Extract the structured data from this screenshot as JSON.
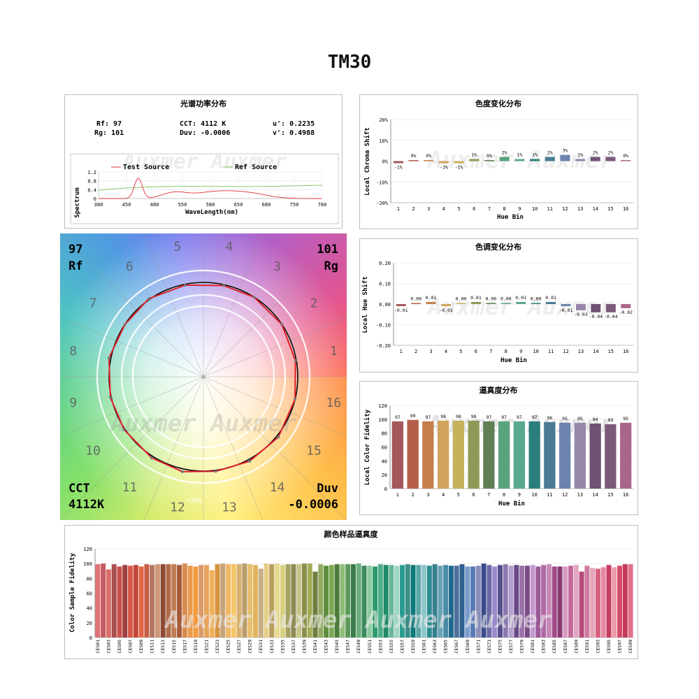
{
  "title": "TM30",
  "spd": {
    "title": "光谱功率分布",
    "stats": {
      "rf": "Rf: 97",
      "rg": "Rg: 101",
      "cct": "CCT: 4112 K",
      "duv": "Duv: -0.0006",
      "u": "u': 0.2235",
      "v": "v': 0.4988"
    },
    "legend": [
      "Test Source",
      "Ref Source"
    ],
    "ylabel": "Spectrum",
    "xlabel": "WaveLength(nm)",
    "xticks": [
      "380",
      "450",
      "480",
      "550",
      "580",
      "650",
      "680",
      "750",
      "780"
    ],
    "yticks": [
      "0",
      "0.4",
      "0.8",
      "1.2"
    ],
    "watermark": "Auxmer   Auxmer"
  },
  "vector": {
    "rf_value": "97",
    "rf_label": "Rf",
    "rg_value": "101",
    "rg_label": "Rg",
    "cct_label": "CCT",
    "cct_value": "4112K",
    "duv_label": "Duv",
    "duv_value": "-0.0006",
    "ring_labels": [
      "-20%",
      "+20%"
    ],
    "bins": [
      "1",
      "2",
      "3",
      "4",
      "5",
      "6",
      "7",
      "8",
      "9",
      "10",
      "11",
      "12",
      "13",
      "14",
      "15",
      "16"
    ],
    "watermark": "Auxmer  Auxmer"
  },
  "chroma": {
    "title": "色度变化分布",
    "ylabel": "Local Chroma Shift",
    "xlabel": "Hue Bin",
    "yticks": [
      "20%",
      "10%",
      "0%",
      "-10%",
      "-20%"
    ],
    "bins": [
      "1",
      "2",
      "3",
      "4",
      "5",
      "6",
      "7",
      "8",
      "9",
      "10",
      "11",
      "12",
      "13",
      "14",
      "15",
      "16"
    ],
    "labels": [
      "-1%",
      "0%",
      "0%",
      "-1%",
      "-1%",
      "1%",
      "0%",
      "2%",
      "1%",
      "1%",
      "2%",
      "3%",
      "1%",
      "2%",
      "2%",
      "0%"
    ],
    "values": [
      -1,
      0,
      0,
      -1,
      -1,
      1,
      0,
      2,
      1,
      1,
      2,
      3,
      1,
      2,
      2,
      0
    ],
    "ylim": [
      -20,
      20
    ],
    "watermark": "Auxmer  Auxmer"
  },
  "hue": {
    "title": "色调变化分布",
    "ylabel": "Local Hue Shift",
    "xlabel": "Hue Bin",
    "yticks": [
      "0.20",
      "0.10",
      "0.00",
      "-0.10",
      "-0.20"
    ],
    "bins": [
      "1",
      "2",
      "3",
      "4",
      "5",
      "6",
      "7",
      "8",
      "9",
      "10",
      "11",
      "12",
      "13",
      "14",
      "15",
      "16"
    ],
    "labels": [
      "-0.01",
      "0.00",
      "0.01",
      "-0.01",
      "0.00",
      "0.01",
      "0.00",
      "0.00",
      "0.01",
      "0.00",
      "0.01",
      "-0.01",
      "-0.03",
      "-0.04",
      "-0.04",
      "-0.02"
    ],
    "values": [
      -0.01,
      0,
      0.01,
      -0.01,
      0,
      0.01,
      0,
      0,
      0.01,
      0,
      0.01,
      -0.01,
      -0.03,
      -0.04,
      -0.04,
      -0.02
    ],
    "ylim": [
      -0.2,
      0.2
    ],
    "watermark": "Auxmer  Auxmer"
  },
  "fidelity": {
    "title": "逼真度分布",
    "ylabel": "Local Color Fidelity",
    "xlabel": "Hue Bin",
    "yticks": [
      "120",
      "100",
      "80",
      "60",
      "40",
      "20",
      "0"
    ],
    "bins": [
      "1",
      "2",
      "3",
      "4",
      "5",
      "6",
      "7",
      "8",
      "9",
      "10",
      "11",
      "12",
      "13",
      "14",
      "15",
      "16"
    ],
    "labels": [
      "97",
      "99",
      "97",
      "98",
      "98",
      "98",
      "97",
      "97",
      "97",
      "97",
      "96",
      "95",
      "95",
      "94",
      "93",
      "95"
    ],
    "values": [
      97,
      99,
      97,
      98,
      98,
      98,
      97,
      97,
      97,
      97,
      96,
      95,
      95,
      94,
      93,
      95
    ],
    "ylim": [
      0,
      120
    ],
    "watermark": "Auxmer  Auxmer"
  },
  "ces": {
    "title": "颜色样品逼真度",
    "ylabel": "Color Sample Fidelity",
    "yticks": [
      "120",
      "100",
      "80",
      "60",
      "40",
      "20",
      "0"
    ],
    "ylim": [
      0,
      120
    ],
    "values": [
      99,
      100,
      92,
      99,
      96,
      98,
      97,
      98,
      96,
      99,
      98,
      99,
      99,
      99,
      99,
      98,
      100,
      97,
      96,
      98,
      98,
      91,
      99,
      100,
      99,
      99,
      99,
      100,
      99,
      98,
      93,
      100,
      99,
      100,
      98,
      99,
      99,
      99,
      100,
      100,
      89,
      99,
      97,
      98,
      99,
      99,
      99,
      99,
      100,
      97,
      97,
      96,
      99,
      98,
      98,
      97,
      98,
      99,
      98,
      98,
      98,
      97,
      99,
      97,
      98,
      97,
      97,
      99,
      96,
      96,
      97,
      100,
      98,
      96,
      98,
      99,
      97,
      98,
      97,
      97,
      98,
      96,
      98,
      99,
      96,
      96,
      96,
      97,
      98,
      89,
      97,
      94,
      93,
      95,
      98,
      95,
      97,
      99,
      99
    ],
    "watermark": "Auxmer  Auxmer  Auxmer  Auxmer"
  },
  "colors": {
    "bins": [
      "#a3585c",
      "#b65d4a",
      "#c67d4c",
      "#d0a45c",
      "#c6b25a",
      "#8f9a57",
      "#607f55",
      "#5aa37e",
      "#5aa88f",
      "#2a7f7c",
      "#4a7a94",
      "#6e83ad",
      "#9586aa",
      "#6f5274",
      "#7b5a79",
      "#a9668a"
    ],
    "test_line": "#e0303a",
    "ref_line": "#7ac25a",
    "ces": [
      "#e07276",
      "#c35b63",
      "#d96f6a",
      "#aa4f4e",
      "#c9514d",
      "#9c3f3f",
      "#d8584a",
      "#c1473a",
      "#e26446",
      "#c65d43",
      "#b47560",
      "#cf9678",
      "#8d4a34",
      "#b06b4b",
      "#c07c55",
      "#a55a3a",
      "#d78a4f",
      "#e89a4e",
      "#f19a3e",
      "#d99a6a",
      "#e7a25a",
      "#f0b058",
      "#d89340",
      "#c5a27a",
      "#efb762",
      "#f4c66a",
      "#d7b071",
      "#b89c6c",
      "#e6c070",
      "#dfb45a",
      "#c7ae88",
      "#e5cf86",
      "#b79e5c",
      "#e6d98f",
      "#d8d080",
      "#a5a162",
      "#8e8a55",
      "#c6c48a",
      "#8b8f4a",
      "#a2ad58",
      "#6f7e3d",
      "#93aa63",
      "#5f8d3e",
      "#7ba852",
      "#4a7b3a",
      "#8fbd7a",
      "#5a9a5a",
      "#3b7a4a",
      "#6cae7c",
      "#3b8c5d",
      "#8ecba2",
      "#2d9a6a",
      "#4fae88",
      "#1f8a6a",
      "#68b59a",
      "#9fd6c0",
      "#2a9c90",
      "#3d8e88",
      "#0f7a7a",
      "#5aa6a6",
      "#8ec6c8",
      "#2c8a92",
      "#377f8c",
      "#6aa2b6",
      "#4a8aa6",
      "#1f6a8c",
      "#4d6f9a",
      "#2f5f92",
      "#7a9ccc",
      "#5a7ab6",
      "#8a8fb8",
      "#3a4a8a",
      "#6a6aa6",
      "#9a8acc",
      "#55508a",
      "#8a7ab0",
      "#b3a0cc",
      "#6a4a88",
      "#9a72aa",
      "#7a4a86",
      "#c49ad0",
      "#9a5a96",
      "#b06aa6",
      "#c78ab8",
      "#a04a8a",
      "#8a3a72",
      "#d79ac0",
      "#c26a9a",
      "#e0a6c2",
      "#b84a7a",
      "#cf7aa2",
      "#e6a6b8",
      "#d6607e",
      "#e38aa0",
      "#c63d62",
      "#ee9aa8",
      "#d44a6a",
      "#c23a5a",
      "#e2708a"
    ]
  }
}
